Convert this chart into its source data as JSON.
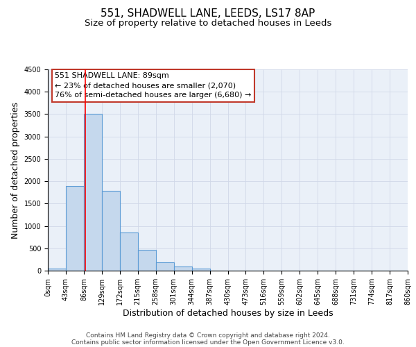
{
  "title": "551, SHADWELL LANE, LEEDS, LS17 8AP",
  "subtitle": "Size of property relative to detached houses in Leeds",
  "xlabel": "Distribution of detached houses by size in Leeds",
  "ylabel": "Number of detached properties",
  "bin_labels": [
    "0sqm",
    "43sqm",
    "86sqm",
    "129sqm",
    "172sqm",
    "215sqm",
    "258sqm",
    "301sqm",
    "344sqm",
    "387sqm",
    "430sqm",
    "473sqm",
    "516sqm",
    "559sqm",
    "602sqm",
    "645sqm",
    "688sqm",
    "731sqm",
    "774sqm",
    "817sqm",
    "860sqm"
  ],
  "bin_edges": [
    0,
    43,
    86,
    129,
    172,
    215,
    258,
    301,
    344,
    387,
    430,
    473,
    516,
    559,
    602,
    645,
    688,
    731,
    774,
    817,
    860
  ],
  "bar_heights": [
    50,
    1900,
    3500,
    1780,
    860,
    460,
    185,
    90,
    40,
    0,
    0,
    0,
    0,
    0,
    0,
    0,
    0,
    0,
    0,
    0
  ],
  "bar_color": "#c5d8ed",
  "bar_edge_color": "#5b9bd5",
  "bar_edge_width": 0.8,
  "red_line_x": 89,
  "annotation_line1": "551 SHADWELL LANE: 89sqm",
  "annotation_line2": "← 23% of detached houses are smaller (2,070)",
  "annotation_line3": "76% of semi-detached houses are larger (6,680) →",
  "ylim": [
    0,
    4500
  ],
  "yticks": [
    0,
    500,
    1000,
    1500,
    2000,
    2500,
    3000,
    3500,
    4000,
    4500
  ],
  "grid_color": "#d0d8e8",
  "background_color": "#eaf0f8",
  "footer_line1": "Contains HM Land Registry data © Crown copyright and database right 2024.",
  "footer_line2": "Contains public sector information licensed under the Open Government Licence v3.0.",
  "title_fontsize": 11,
  "subtitle_fontsize": 9.5,
  "axis_label_fontsize": 9,
  "tick_fontsize": 7,
  "annotation_fontsize": 8,
  "footer_fontsize": 6.5
}
